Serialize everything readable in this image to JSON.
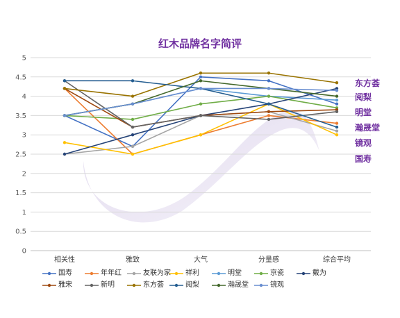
{
  "chart_data": {
    "type": "line",
    "title": "红木品牌名字简评",
    "title_color": "#7030a0",
    "categories": [
      "相关性",
      "雅致",
      "大气",
      "分量感",
      "综合平均"
    ],
    "ylim": [
      0,
      5
    ],
    "yticks": [
      "0",
      "0.5",
      "1",
      "1.5",
      "2",
      "2.5",
      "3",
      "3.5",
      "4",
      "4.5",
      "5"
    ],
    "grid": true,
    "legend_position": "bottom",
    "series": [
      {
        "name": "国寿",
        "color": "#4472c4",
        "values": [
          3.5,
          2.7,
          4.5,
          4.4,
          3.8
        ]
      },
      {
        "name": "年年红",
        "color": "#ed7d31",
        "values": [
          4.2,
          2.5,
          3.0,
          3.5,
          3.3
        ]
      },
      {
        "name": "友联为家",
        "color": "#a5a5a5",
        "values": [
          2.5,
          2.7,
          3.5,
          3.6,
          3.1
        ]
      },
      {
        "name": "祥利",
        "color": "#ffc000",
        "values": [
          2.8,
          2.5,
          3.0,
          3.8,
          3.0
        ]
      },
      {
        "name": "明堂",
        "color": "#5b9bd5",
        "values": [
          3.5,
          3.8,
          4.2,
          4.0,
          3.9
        ]
      },
      {
        "name": "京瓷",
        "color": "#70ad47",
        "values": [
          3.5,
          3.4,
          3.8,
          4.0,
          3.7
        ]
      },
      {
        "name": "戴为",
        "color": "#264478",
        "values": [
          2.5,
          3.0,
          3.5,
          3.8,
          4.2
        ]
      },
      {
        "name": "雅宋",
        "color": "#9e480e",
        "values": [
          4.2,
          3.2,
          3.5,
          3.6,
          3.65
        ]
      },
      {
        "name": "新明",
        "color": "#636363",
        "values": [
          4.4,
          3.2,
          3.5,
          3.4,
          3.6
        ]
      },
      {
        "name": "东方荟",
        "color": "#997300",
        "values": [
          4.2,
          4.0,
          4.6,
          4.6,
          4.35
        ]
      },
      {
        "name": "阅梨",
        "color": "#255e91",
        "values": [
          4.4,
          4.4,
          4.2,
          3.8,
          3.2
        ]
      },
      {
        "name": "瀚晟堂",
        "color": "#43682b",
        "values": [
          3.5,
          3.8,
          4.4,
          4.2,
          4.0
        ]
      },
      {
        "name": "镜观",
        "color": "#698ed0",
        "values": [
          3.5,
          3.8,
          4.2,
          4.2,
          4.15
        ]
      }
    ],
    "annotations": [
      {
        "text": "东方荟",
        "value": 4.35,
        "color": "#7030a0"
      },
      {
        "text": "阅梨",
        "value": 4.0,
        "color": "#7030a0"
      },
      {
        "text": "明堂",
        "value": 3.6,
        "color": "#7030a0"
      },
      {
        "text": "瀚晟堂",
        "value": 3.2,
        "color": "#7030a0"
      },
      {
        "text": "镜观",
        "value": 2.8,
        "color": "#7030a0"
      },
      {
        "text": "国寿",
        "value": 2.4,
        "color": "#7030a0"
      }
    ]
  }
}
